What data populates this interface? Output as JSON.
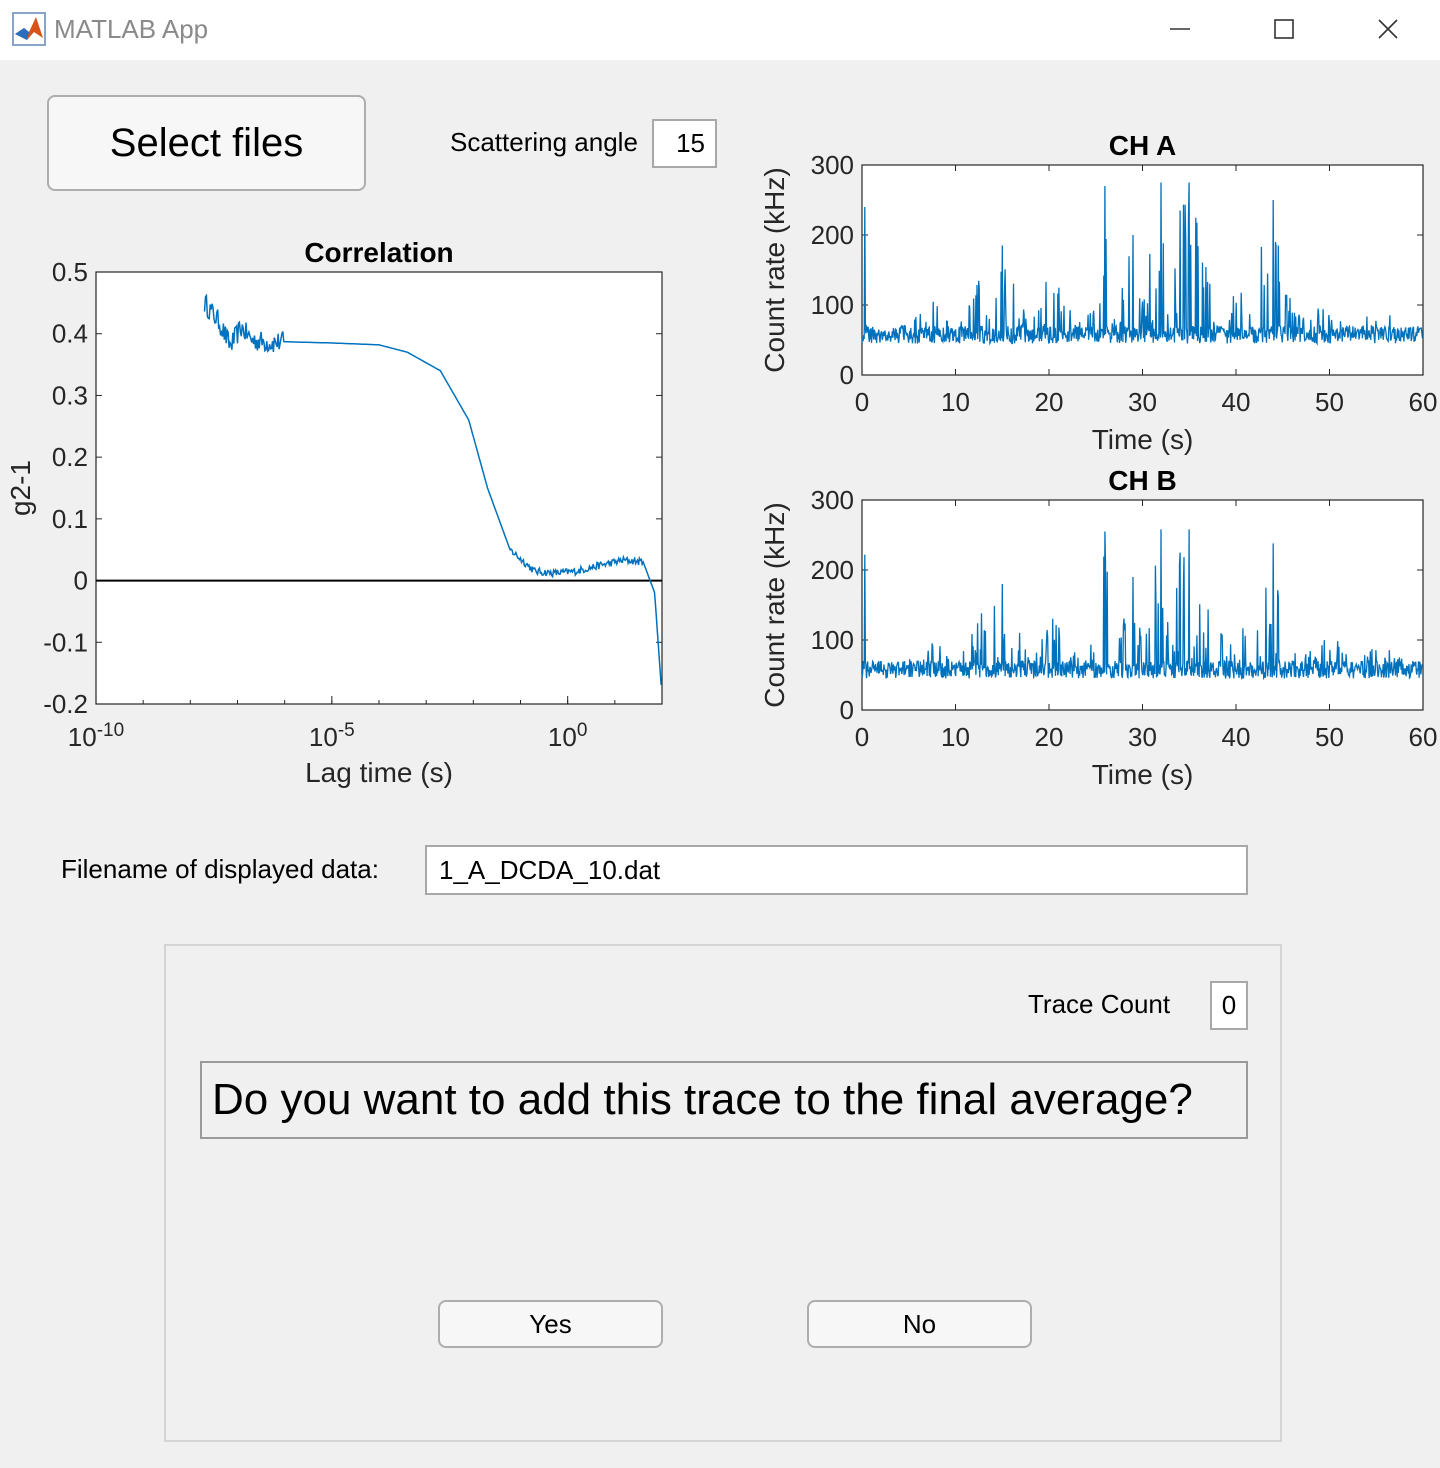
{
  "window": {
    "title": "MATLAB App",
    "icon": "matlab-membrane-icon",
    "controls": [
      "minimize-icon",
      "maximize-icon",
      "close-icon"
    ]
  },
  "toolbar": {
    "select_files_label": "Select files",
    "scattering_angle_label": "Scattering angle",
    "scattering_angle_value": "15"
  },
  "filename": {
    "label": "Filename of displayed data:",
    "value": "1_A_DCDA_10.dat"
  },
  "panel": {
    "trace_count_label": "Trace Count",
    "trace_count_value": "0",
    "question": "Do you want to add this trace to the final average?",
    "yes_label": "Yes",
    "no_label": "No"
  },
  "colors": {
    "line": "#0072bd",
    "zero_line": "#000000",
    "background": "#f0f0f0"
  },
  "chart_data": [
    {
      "type": "line",
      "title": "Correlation",
      "xlabel": "Lag time (s)",
      "ylabel": "g2-1",
      "xscale": "log",
      "xlim": [
        1e-10,
        100
      ],
      "ylim": [
        -0.2,
        0.5
      ],
      "xticks": [
        "10^-10",
        "10^-5",
        "10^0"
      ],
      "yticks": [
        "0.5",
        "0.4",
        "0.3",
        "0.2",
        "0.1",
        "0",
        "-0.1",
        "-0.2"
      ],
      "reference_line": {
        "y": 0
      },
      "series": [
        {
          "x": [
            2e-08,
            4e-08,
            7e-08,
            1.2e-07,
            2e-07,
            5e-07,
            1e-06,
            1e-05,
            0.0001,
            0.0004,
            0.002,
            0.008,
            0.02,
            0.06,
            0.2,
            0.5,
            1.5,
            5,
            15,
            40,
            70,
            100
          ],
          "y": [
            0.45,
            0.42,
            0.38,
            0.41,
            0.39,
            0.385,
            0.387,
            0.385,
            0.382,
            0.37,
            0.34,
            0.26,
            0.15,
            0.05,
            0.015,
            0.012,
            0.015,
            0.025,
            0.033,
            0.03,
            -0.02,
            -0.19
          ]
        }
      ]
    },
    {
      "type": "line",
      "title": "CH A",
      "xlabel": "Time (s)",
      "ylabel": "Count rate (kHz)",
      "xlim": [
        0,
        60
      ],
      "ylim": [
        0,
        300
      ],
      "xticks": [
        "0",
        "10",
        "20",
        "30",
        "40",
        "50",
        "60"
      ],
      "yticks": [
        "300",
        "200",
        "100",
        "0"
      ],
      "series": [
        {
          "x": [
            0,
            0.3,
            0.5,
            2,
            5,
            8,
            10,
            13,
            15,
            18,
            20,
            23,
            25,
            26,
            27,
            29,
            30,
            32,
            33,
            34,
            35,
            37,
            39,
            41,
            44,
            46,
            48,
            50,
            53,
            55,
            58,
            60
          ],
          "y": [
            50,
            240,
            55,
            60,
            75,
            110,
            60,
            150,
            185,
            70,
            150,
            80,
            100,
            270,
            80,
            200,
            110,
            275,
            90,
            235,
            275,
            150,
            105,
            150,
            250,
            100,
            90,
            120,
            60,
            110,
            70,
            60
          ]
        }
      ]
    },
    {
      "type": "line",
      "title": "CH B",
      "xlabel": "Time (s)",
      "ylabel": "Count rate (kHz)",
      "xlim": [
        0,
        60
      ],
      "ylim": [
        0,
        300
      ],
      "xticks": [
        "0",
        "10",
        "20",
        "30",
        "40",
        "50",
        "60"
      ],
      "yticks": [
        "300",
        "200",
        "100",
        "0"
      ],
      "series": [
        {
          "x": [
            0,
            0.3,
            0.5,
            2,
            5,
            8,
            10,
            13,
            15,
            18,
            20,
            23,
            25,
            26,
            27,
            29,
            30,
            32,
            33,
            34,
            35,
            37,
            39,
            41,
            44,
            46,
            48,
            50,
            53,
            55,
            58,
            60
          ],
          "y": [
            50,
            222,
            55,
            60,
            75,
            105,
            60,
            145,
            180,
            70,
            145,
            80,
            100,
            255,
            80,
            190,
            110,
            258,
            90,
            225,
            258,
            145,
            105,
            145,
            238,
            100,
            90,
            115,
            60,
            110,
            70,
            60
          ]
        }
      ]
    }
  ]
}
